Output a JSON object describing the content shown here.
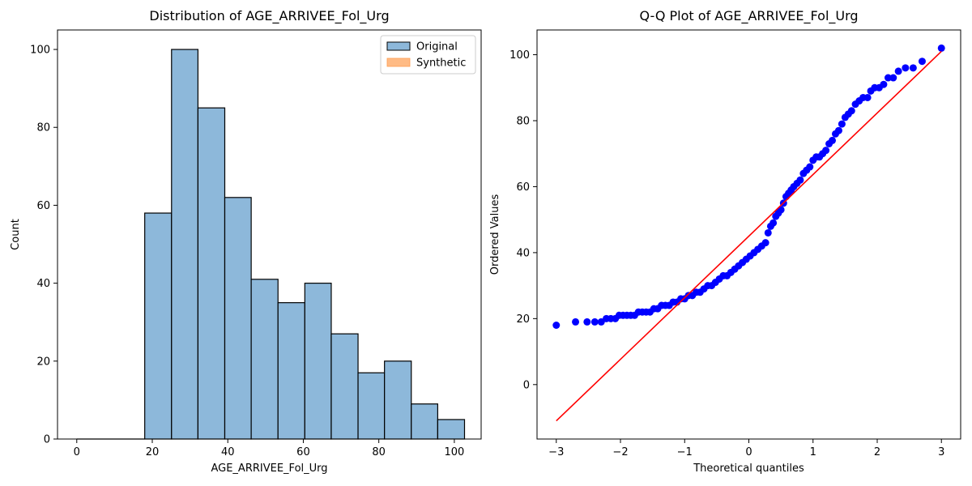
{
  "chart_data": [
    {
      "type": "bar",
      "title": "Distribution of AGE_ARRIVEE_Fol_Urg",
      "xlabel": "AGE_ARRIVEE_Fol_Urg",
      "ylabel": "Count",
      "xlim": [
        -5.1,
        107.1
      ],
      "ylim": [
        0,
        105
      ],
      "xticks": [
        0,
        20,
        40,
        60,
        80,
        100
      ],
      "yticks": [
        0,
        20,
        40,
        60,
        80,
        100
      ],
      "bins": [
        {
          "x0": 18.0,
          "x1": 25.1,
          "count": 58
        },
        {
          "x0": 25.1,
          "x1": 32.1,
          "count": 100
        },
        {
          "x0": 32.1,
          "x1": 39.2,
          "count": 85
        },
        {
          "x0": 39.2,
          "x1": 46.2,
          "count": 62
        },
        {
          "x0": 46.2,
          "x1": 53.3,
          "count": 41
        },
        {
          "x0": 53.3,
          "x1": 60.4,
          "count": 35
        },
        {
          "x0": 60.4,
          "x1": 67.4,
          "count": 40
        },
        {
          "x0": 67.4,
          "x1": 74.5,
          "count": 27
        },
        {
          "x0": 74.5,
          "x1": 81.5,
          "count": 17
        },
        {
          "x0": 81.5,
          "x1": 88.6,
          "count": 20
        },
        {
          "x0": 88.6,
          "x1": 95.6,
          "count": 9
        },
        {
          "x0": 95.6,
          "x1": 102.7,
          "count": 5
        }
      ],
      "legend": {
        "placement": "top-right",
        "entries": [
          {
            "name": "Original",
            "color": "#8db8da"
          },
          {
            "name": "Synthetic",
            "color": "#ffbb85"
          }
        ]
      },
      "colors": {
        "original_fill": "#8db8da",
        "edge": "#000000"
      }
    },
    {
      "type": "scatter",
      "title": "Q-Q Plot of AGE_ARRIVEE_Fol_Urg",
      "xlabel": "Theoretical quantiles",
      "ylabel": "Ordered Values",
      "xlim": [
        -3.3,
        3.3
      ],
      "ylim": [
        -16.5,
        107.5
      ],
      "xticks": [
        -3,
        -2,
        -1,
        0,
        1,
        2,
        3
      ],
      "yticks": [
        0,
        20,
        40,
        60,
        80,
        100
      ],
      "fit_line": {
        "x": [
          -3.0,
          3.0
        ],
        "y": [
          -11,
          101
        ],
        "color": "#ff0000"
      },
      "marker_color": "#0000ff",
      "points": [
        [
          -3.0,
          18
        ],
        [
          -2.7,
          19
        ],
        [
          -2.52,
          19
        ],
        [
          -2.4,
          19
        ],
        [
          -2.3,
          19
        ],
        [
          -2.22,
          20
        ],
        [
          -2.15,
          20
        ],
        [
          -2.08,
          20
        ],
        [
          -2.02,
          21
        ],
        [
          -1.96,
          21
        ],
        [
          -1.9,
          21
        ],
        [
          -1.84,
          21
        ],
        [
          -1.78,
          21
        ],
        [
          -1.72,
          22
        ],
        [
          -1.66,
          22
        ],
        [
          -1.6,
          22
        ],
        [
          -1.54,
          22
        ],
        [
          -1.48,
          23
        ],
        [
          -1.42,
          23
        ],
        [
          -1.36,
          24
        ],
        [
          -1.3,
          24
        ],
        [
          -1.24,
          24
        ],
        [
          -1.18,
          25
        ],
        [
          -1.12,
          25
        ],
        [
          -1.06,
          26
        ],
        [
          -1.0,
          26
        ],
        [
          -0.94,
          27
        ],
        [
          -0.88,
          27
        ],
        [
          -0.82,
          28
        ],
        [
          -0.76,
          28
        ],
        [
          -0.7,
          29
        ],
        [
          -0.64,
          30
        ],
        [
          -0.58,
          30
        ],
        [
          -0.52,
          31
        ],
        [
          -0.46,
          32
        ],
        [
          -0.4,
          33
        ],
        [
          -0.34,
          33
        ],
        [
          -0.28,
          34
        ],
        [
          -0.22,
          35
        ],
        [
          -0.16,
          36
        ],
        [
          -0.1,
          37
        ],
        [
          -0.04,
          38
        ],
        [
          0.02,
          39
        ],
        [
          0.08,
          40
        ],
        [
          0.14,
          41
        ],
        [
          0.2,
          42
        ],
        [
          0.26,
          43
        ],
        [
          0.3,
          46
        ],
        [
          0.34,
          48
        ],
        [
          0.38,
          49
        ],
        [
          0.42,
          51
        ],
        [
          0.46,
          52
        ],
        [
          0.5,
          53
        ],
        [
          0.54,
          55
        ],
        [
          0.58,
          57
        ],
        [
          0.62,
          58
        ],
        [
          0.66,
          59
        ],
        [
          0.7,
          60
        ],
        [
          0.75,
          61
        ],
        [
          0.8,
          62
        ],
        [
          0.85,
          64
        ],
        [
          0.9,
          65
        ],
        [
          0.95,
          66
        ],
        [
          1.0,
          68
        ],
        [
          1.05,
          69
        ],
        [
          1.1,
          69
        ],
        [
          1.15,
          70
        ],
        [
          1.2,
          71
        ],
        [
          1.25,
          73
        ],
        [
          1.3,
          74
        ],
        [
          1.35,
          76
        ],
        [
          1.4,
          77
        ],
        [
          1.45,
          79
        ],
        [
          1.5,
          81
        ],
        [
          1.55,
          82
        ],
        [
          1.6,
          83
        ],
        [
          1.66,
          85
        ],
        [
          1.72,
          86
        ],
        [
          1.78,
          87
        ],
        [
          1.85,
          87
        ],
        [
          1.9,
          89
        ],
        [
          1.96,
          90
        ],
        [
          2.03,
          90
        ],
        [
          2.1,
          91
        ],
        [
          2.17,
          93
        ],
        [
          2.25,
          93
        ],
        [
          2.33,
          95
        ],
        [
          2.44,
          96
        ],
        [
          2.56,
          96
        ],
        [
          2.7,
          98
        ],
        [
          3.0,
          102
        ]
      ]
    }
  ]
}
